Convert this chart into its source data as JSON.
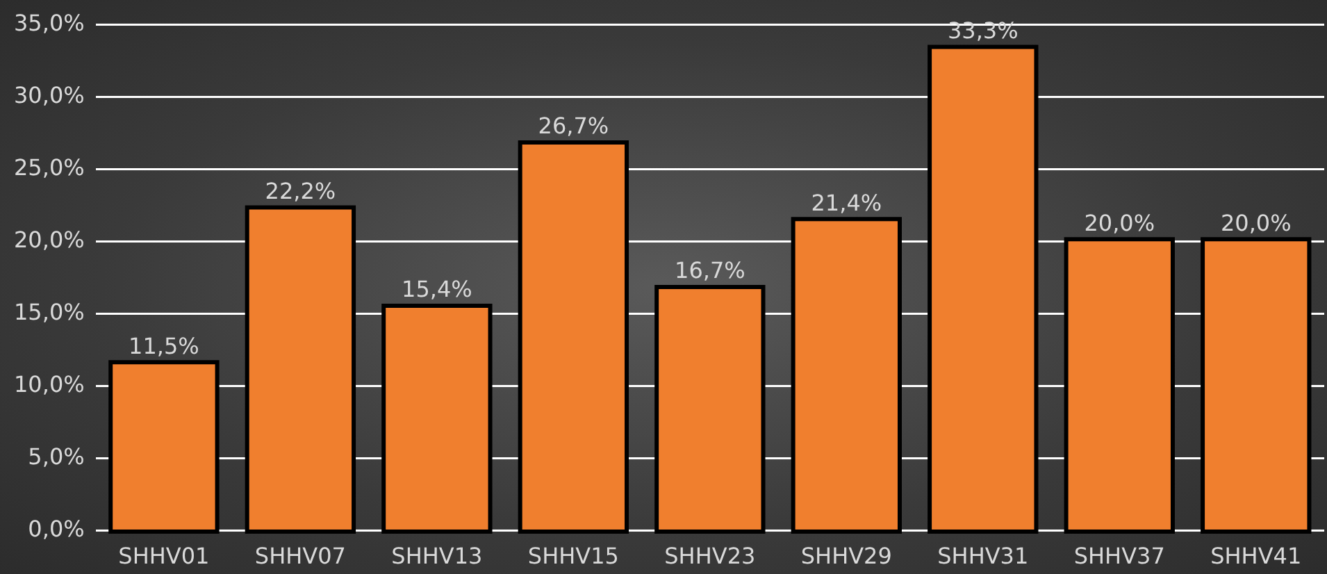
{
  "chart_data": {
    "type": "bar",
    "categories": [
      "SHHV01",
      "SHHV07",
      "SHHV13",
      "SHHV15",
      "SHHV23",
      "SHHV29",
      "SHHV31",
      "SHHV37",
      "SHHV41"
    ],
    "values": [
      11.5,
      22.2,
      15.4,
      26.7,
      16.7,
      21.4,
      33.3,
      20.0,
      20.0
    ],
    "value_labels": [
      "11,5%",
      "22,2%",
      "15,4%",
      "26,7%",
      "16,7%",
      "21,4%",
      "33,3%",
      "20,0%",
      "20,0%"
    ],
    "color": "#f07f2e",
    "ylim": [
      0,
      35
    ],
    "yticks": [
      {
        "value": 0,
        "label": "0,0%"
      },
      {
        "value": 5,
        "label": "5,0%"
      },
      {
        "value": 10,
        "label": "10,0%"
      },
      {
        "value": 15,
        "label": "15,0%"
      },
      {
        "value": 20,
        "label": "20,0%"
      },
      {
        "value": 25,
        "label": "25,0%"
      },
      {
        "value": 30,
        "label": "30,0%"
      },
      {
        "value": 35,
        "label": "35,0%"
      }
    ],
    "grid": "y",
    "legend": false
  }
}
